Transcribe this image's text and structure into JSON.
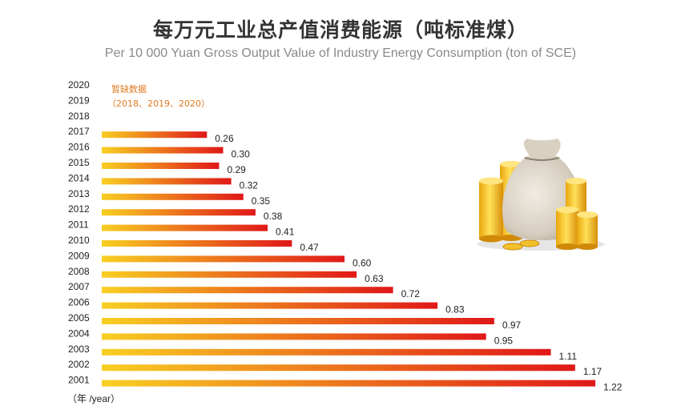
{
  "chart_data": {
    "type": "bar",
    "orientation": "horizontal",
    "title": "每万元工业总产值消费能源（吨标准煤）",
    "subtitle": "Per 10 000 Yuan Gross Output Value of Industry Energy Consumption (ton of SCE)",
    "categories": [
      "2020",
      "2019",
      "2018",
      "2017",
      "2016",
      "2015",
      "2014",
      "2013",
      "2012",
      "2011",
      "2010",
      "2009",
      "2008",
      "2007",
      "2006",
      "2005",
      "2004",
      "2003",
      "2002",
      "2001"
    ],
    "values": [
      null,
      null,
      null,
      0.26,
      0.3,
      0.29,
      0.32,
      0.35,
      0.38,
      0.41,
      0.47,
      0.6,
      0.63,
      0.72,
      0.83,
      0.97,
      0.95,
      1.11,
      1.17,
      1.22
    ],
    "value_labels": [
      "",
      "",
      "",
      "0.26",
      "0.30",
      "0.29",
      "0.32",
      "0.35",
      "0.38",
      "0.41",
      "0.47",
      "0.60",
      "0.63",
      "0.72",
      "0.83",
      "0.97",
      "0.95",
      "1.11",
      "1.17",
      "1.22"
    ],
    "missing_note": "暂缺数据",
    "missing_years_note": "（2018、2019、2020）",
    "xlabel": "",
    "ylabel": "（年 /year）",
    "xlim": [
      0,
      1.25
    ],
    "colors": {
      "bar_start": "#f8cf22",
      "bar_end": "#e01818",
      "note": "#e07a22"
    }
  },
  "illustration": "money-bag-and-gold-coins"
}
